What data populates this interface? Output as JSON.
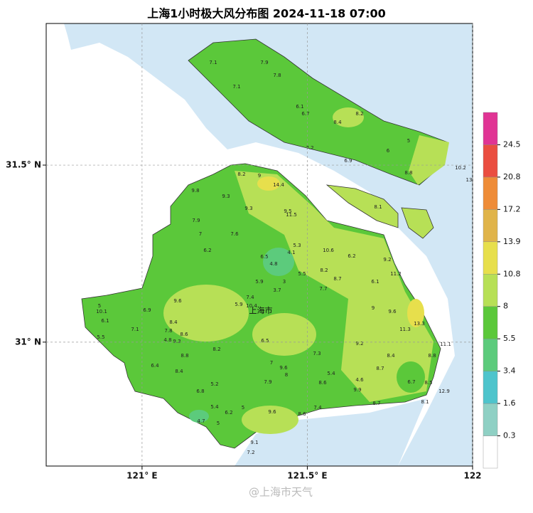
{
  "chart_data": {
    "type": "map",
    "title": "上海1小时极大风分布图 2024-11-18 07:00",
    "xlim": [
      120.71,
      122.0
    ],
    "ylim": [
      30.65,
      31.9
    ],
    "xticks": [
      {
        "value": 121,
        "label": "121° E"
      },
      {
        "value": 121.5,
        "label": "121.5° E"
      },
      122
    ],
    "yticks": [
      {
        "value": 31,
        "label": "31° N"
      },
      {
        "value": 31.5,
        "label": "31.5° N"
      }
    ],
    "grid": true,
    "city_label": "上海市",
    "watermark": "@上海市天气",
    "colorbar": {
      "levels": [
        0.3,
        1.6,
        3.4,
        5.5,
        8,
        10.8,
        13.9,
        17.2,
        20.8,
        24.5
      ],
      "colors": [
        "#ffffff",
        "#8fd0c4",
        "#4ec4cc",
        "#5ccb7c",
        "#5bc83a",
        "#b7e056",
        "#e7df4c",
        "#e0b44a",
        "#ee8c38",
        "#ea4e40",
        "#e03494"
      ]
    },
    "stations": [
      7.1,
      7.9,
      7.1,
      7.8,
      6.1,
      6.7,
      8.2,
      8.4,
      7.2,
      6.9,
      6.0,
      5.0,
      8.8,
      10.2,
      13,
      8.2,
      9.0,
      14.4,
      9.8,
      9.3,
      9.3,
      9.5,
      11.5,
      8.1,
      7.9,
      7.0,
      7.6,
      6.2,
      6.5,
      4.8,
      4.1,
      5.3,
      5.5,
      10.6,
      8.2,
      6.2,
      11.2,
      9.2,
      8.7,
      7.7,
      6.1,
      9.0,
      9.6,
      11.3,
      13.3,
      11.1,
      8.8,
      9.2,
      8.4,
      8.7,
      6.7,
      8.5,
      12.9,
      8.1,
      8.7,
      9.9,
      4.6,
      5.4,
      7.3,
      8.6,
      7.4,
      8.6,
      9.6,
      9.6,
      8.0,
      7.0,
      6.5,
      5.9,
      7.4,
      10.4,
      3.7,
      3.0,
      5.9,
      5.0,
      10.1,
      6.1,
      7.1,
      5.5,
      6.9,
      8.4,
      8.6,
      9.3,
      8.2,
      8.8,
      4.8,
      7.8,
      6.4,
      8.4,
      5.2,
      6.8,
      5.4,
      6.2,
      5.0,
      5.0,
      7.9,
      9.1,
      7.2,
      4.7,
      9.6
    ]
  }
}
